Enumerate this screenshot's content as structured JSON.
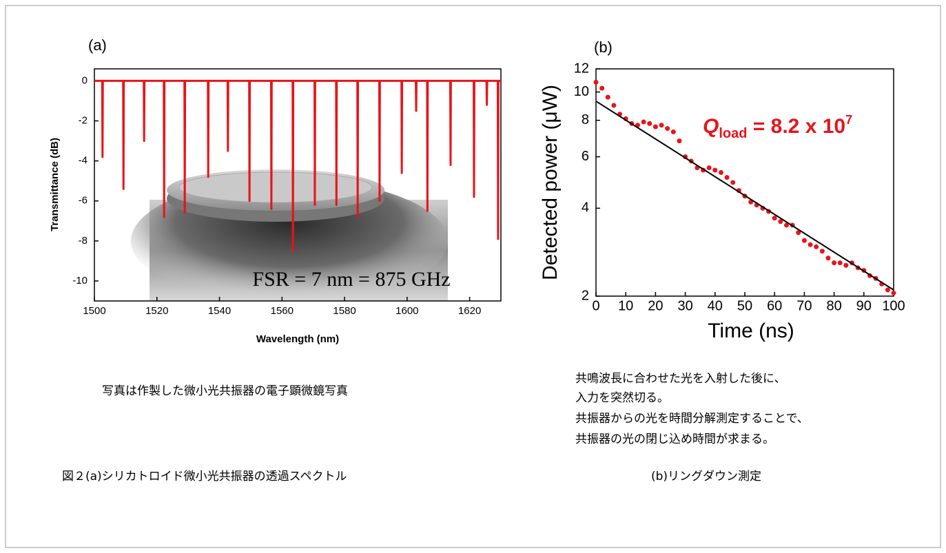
{
  "chart_data": [
    {
      "type": "line",
      "panel_label": "(a)",
      "xlabel": "Wavelength (nm)",
      "ylabel": "Transmittance (dB)",
      "annotation": "FSR = 7 nm = 875 GHz",
      "color": "#e8141a",
      "xlim": [
        1500,
        1630
      ],
      "xticks": [
        1500,
        1520,
        1540,
        1560,
        1580,
        1600,
        1620
      ],
      "ylim": [
        -11,
        0.6
      ],
      "yticks": [
        0,
        -2,
        -4,
        -6,
        -8,
        -10
      ],
      "x": [
        1500,
        1502.5,
        1502.6,
        1502.7,
        1509.2,
        1509.3,
        1509.4,
        1515.8,
        1515.9,
        1516,
        1522.2,
        1522.3,
        1522.4,
        1528.8,
        1528.9,
        1529,
        1536.3,
        1536.4,
        1536.5,
        1542.6,
        1542.7,
        1542.8,
        1549.5,
        1549.6,
        1549.7,
        1556.5,
        1556.6,
        1556.7,
        1563.4,
        1563.5,
        1563.6,
        1570.4,
        1570.5,
        1570.6,
        1577.3,
        1577.4,
        1577.5,
        1584.1,
        1584.2,
        1584.3,
        1591.1,
        1591.2,
        1591.3,
        1598.2,
        1598.3,
        1598.4,
        1602.8,
        1602.9,
        1603,
        1606.4,
        1606.5,
        1606.6,
        1613.8,
        1613.9,
        1614,
        1621.3,
        1621.4,
        1621.5,
        1625.4,
        1625.5,
        1625.6,
        1629,
        1629.1,
        1629.2,
        1630
      ],
      "values": [
        0,
        0,
        -3.8,
        0,
        0,
        -5.4,
        0,
        0,
        -3.0,
        0,
        0,
        -6.8,
        0,
        0,
        -6.6,
        0,
        0,
        -4.8,
        0,
        0,
        -3.5,
        0,
        0,
        -6.0,
        0,
        0,
        -6.4,
        0,
        0,
        -8.5,
        0,
        0,
        -6.2,
        0,
        0,
        -6.2,
        0,
        0,
        -6.8,
        0,
        0,
        -6.0,
        0,
        0,
        -4.6,
        0,
        0,
        -1.5,
        0,
        0,
        -6.5,
        0,
        0,
        -4.2,
        0,
        0,
        -5.8,
        0,
        0,
        -1.2,
        0,
        0,
        -7.9,
        0,
        0
      ]
    },
    {
      "type": "scatter",
      "panel_label": "(b)",
      "xlabel": "Time  (ns)",
      "ylabel": "Detected power  (μW)",
      "annotation": [
        "Q",
        "load",
        " = 8.2 x 10",
        "7"
      ],
      "color": "#e8141a",
      "yscale": "log",
      "xlim": [
        0,
        100
      ],
      "xticks": [
        0,
        10,
        20,
        30,
        40,
        50,
        60,
        70,
        80,
        90,
        100
      ],
      "ylim": [
        2,
        12
      ],
      "yticks": [
        2,
        4,
        6,
        8,
        10,
        12
      ],
      "x": [
        0,
        2,
        4,
        6,
        8,
        10,
        12,
        14,
        16,
        18,
        20,
        22,
        24,
        26,
        28,
        30,
        32,
        34,
        36,
        38,
        40,
        42,
        44,
        46,
        48,
        50,
        52,
        54,
        56,
        58,
        60,
        62,
        64,
        66,
        68,
        70,
        72,
        74,
        76,
        78,
        80,
        82,
        84,
        86,
        88,
        90,
        92,
        94,
        96,
        98,
        100
      ],
      "values": [
        10.8,
        10.3,
        9.6,
        9.0,
        8.4,
        8.1,
        7.8,
        7.7,
        7.9,
        7.8,
        7.6,
        7.7,
        7.5,
        7.3,
        6.8,
        6.0,
        5.8,
        5.5,
        5.4,
        5.5,
        5.4,
        5.3,
        5.1,
        4.9,
        4.6,
        4.4,
        4.2,
        4.1,
        4.0,
        3.9,
        3.7,
        3.6,
        3.5,
        3.5,
        3.3,
        3.1,
        3.0,
        2.95,
        2.85,
        2.7,
        2.6,
        2.6,
        2.55,
        2.6,
        2.5,
        2.45,
        2.35,
        2.3,
        2.2,
        2.1,
        2.05
      ],
      "fit": {
        "x": [
          0,
          100
        ],
        "values": [
          9.3,
          2.1
        ],
        "color": "#000000"
      }
    }
  ],
  "captions": {
    "a_note": "写真は作製した微小光共振器の電子顕微鏡写真",
    "b_notes": [
      "共鳴波長に合わせた光を入射した後に、",
      "入力を突然切る。",
      "共振器からの光を時間分解測定することで、",
      "共振器の光の閉じ込め時間が求まる。"
    ],
    "figure_a": "図２(a)シリカトロイド微小光共振器の透過スペクトル",
    "figure_b": "(b)リングダウン測定"
  }
}
